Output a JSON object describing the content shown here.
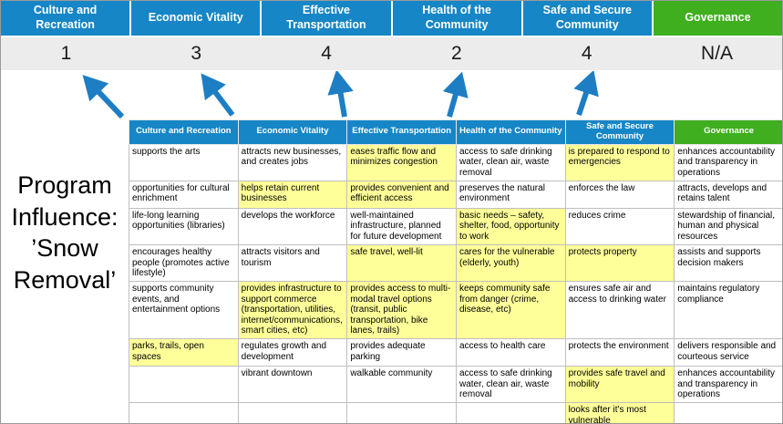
{
  "title": "Program Influence: ’Snow Removal’",
  "colors": {
    "pillar_blue": "#1686c6",
    "governance_green": "#3fae1f",
    "arrow_blue": "#1e7ec4",
    "highlight_yellow": "#ffff99",
    "score_band_gray": "#ececec"
  },
  "scoreboard": [
    {
      "label": "Culture and Recreation",
      "score": "1",
      "color": "#1686c6"
    },
    {
      "label": "Economic Vitality",
      "score": "3",
      "color": "#1686c6"
    },
    {
      "label": "Effective Transportation",
      "score": "4",
      "color": "#1686c6"
    },
    {
      "label": "Health of the Community",
      "score": "2",
      "color": "#1686c6"
    },
    {
      "label": "Safe and Secure Community",
      "score": "4",
      "color": "#1686c6"
    },
    {
      "label": "Governance",
      "score": "N/A",
      "color": "#3fae1f"
    }
  ],
  "table": {
    "headers": [
      {
        "label": "Culture and Recreation",
        "color": "#1686c6"
      },
      {
        "label": "Economic Vitality",
        "color": "#1686c6"
      },
      {
        "label": "Effective Transportation",
        "color": "#1686c6"
      },
      {
        "label": "Health of the Community",
        "color": "#1686c6"
      },
      {
        "label": "Safe and Secure Community",
        "color": "#1686c6"
      },
      {
        "label": "Governance",
        "color": "#3fae1f"
      }
    ],
    "rows": [
      [
        {
          "text": "supports the arts",
          "hl": false
        },
        {
          "text": "attracts new businesses, and creates jobs",
          "hl": false
        },
        {
          "text": "eases traffic flow and minimizes congestion",
          "hl": true
        },
        {
          "text": "access to safe drinking water, clean air, waste removal",
          "hl": false
        },
        {
          "text": "is prepared to respond to emergencies",
          "hl": true
        },
        {
          "text": "enhances accountability and transparency in operations",
          "hl": false
        }
      ],
      [
        {
          "text": "opportunities for cultural enrichment",
          "hl": false
        },
        {
          "text": "helps retain current businesses",
          "hl": true
        },
        {
          "text": "provides convenient and efficient access",
          "hl": true
        },
        {
          "text": "preserves the natural environment",
          "hl": false
        },
        {
          "text": "enforces the law",
          "hl": false
        },
        {
          "text": "attracts, develops and retains talent",
          "hl": false
        }
      ],
      [
        {
          "text": "life-long learning opportunities (libraries)",
          "hl": false
        },
        {
          "text": "develops the workforce",
          "hl": false
        },
        {
          "text": "well-maintained infrastructure, planned for future development",
          "hl": false
        },
        {
          "text": "basic needs – safety, shelter, food, opportunity to work",
          "hl": true
        },
        {
          "text": "reduces crime",
          "hl": false
        },
        {
          "text": "stewardship of financial, human and physical resources",
          "hl": false
        }
      ],
      [
        {
          "text": "encourages healthy people (promotes active lifestyle)",
          "hl": false
        },
        {
          "text": "attracts visitors and tourism",
          "hl": false
        },
        {
          "text": "safe travel, well-lit",
          "hl": true
        },
        {
          "text": "cares for the vulnerable (elderly, youth)",
          "hl": true
        },
        {
          "text": "protects property",
          "hl": true
        },
        {
          "text": "assists and supports decision makers",
          "hl": false
        }
      ],
      [
        {
          "text": "supports community events, and entertainment options",
          "hl": false
        },
        {
          "text": "provides infrastructure to support commerce (transportation, utilities, internet/communications, smart cities, etc)",
          "hl": true
        },
        {
          "text": "provides access to multi-modal travel options (transit, public transportation, bike lanes, trails)",
          "hl": true
        },
        {
          "text": "keeps community safe from danger (crime, disease, etc)",
          "hl": true
        },
        {
          "text": "ensures safe air and access to drinking water",
          "hl": false
        },
        {
          "text": "maintains regulatory compliance",
          "hl": false
        }
      ],
      [
        {
          "text": "parks, trails, open spaces",
          "hl": true
        },
        {
          "text": "regulates growth and development",
          "hl": false
        },
        {
          "text": "provides adequate parking",
          "hl": false
        },
        {
          "text": "access to health care",
          "hl": false
        },
        {
          "text": "protects the environment",
          "hl": false
        },
        {
          "text": "delivers responsible and courteous service",
          "hl": false
        }
      ],
      [
        {
          "text": "",
          "hl": false
        },
        {
          "text": "vibrant downtown",
          "hl": false
        },
        {
          "text": "walkable community",
          "hl": false
        },
        {
          "text": "access to safe drinking water, clean air, waste removal",
          "hl": false
        },
        {
          "text": "provides safe travel and mobility",
          "hl": true
        },
        {
          "text": "enhances accountability and transparency in operations",
          "hl": false
        }
      ],
      [
        {
          "text": "",
          "hl": false
        },
        {
          "text": "",
          "hl": false
        },
        {
          "text": "",
          "hl": false
        },
        {
          "text": "",
          "hl": false
        },
        {
          "text": "looks after it's most vulnerable",
          "hl": true
        },
        {
          "text": "",
          "hl": false
        }
      ]
    ]
  }
}
